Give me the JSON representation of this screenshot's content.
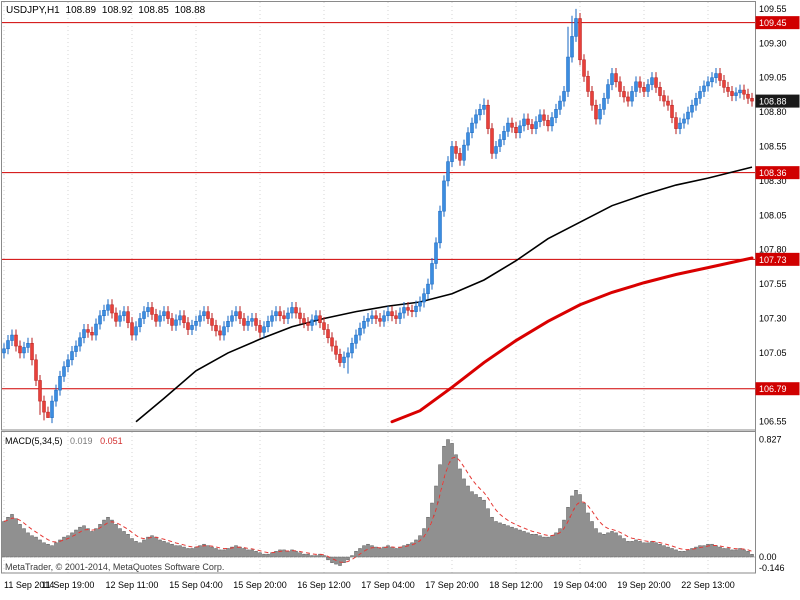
{
  "header": {
    "symbol_period": "USDJPY,H1",
    "open": "108.89",
    "high": "108.92",
    "low": "108.85",
    "close": "108.88"
  },
  "indicator": {
    "label": "MACD(5,34,5)",
    "value_main": "0.019",
    "value_signal": "0.051"
  },
  "watermark": "MetaTrader, © 2001-2014, MetaQuotes Software Corp.",
  "colors": {
    "candle_up": "#3b8de0",
    "candle_up_border": "#1565c0",
    "candle_down": "#e8403a",
    "candle_down_border": "#b71c1c",
    "ma_black": "#000000",
    "ma_red": "#d90000",
    "level_line": "#d00000",
    "level_badge": "#d00000",
    "current_badge": "#1a1a1a",
    "grid": "#d4d4d4",
    "pane_border": "#8a8a8a",
    "macd_bar_fill": "#909090",
    "macd_bar_border": "#5a5a5a",
    "macd_signal": "#e53935",
    "axis_text": "#000000"
  },
  "chart_data": [
    {
      "type": "candlestick",
      "title": "USDJPY,H1",
      "ylim": [
        106.49,
        109.6
      ],
      "grid": "vertical-dotted",
      "y_ticks": [
        "109.55",
        "109.30",
        "109.05",
        "108.80",
        "108.55",
        "108.30",
        "108.05",
        "107.80",
        "107.55",
        "107.30",
        "107.05",
        "106.55"
      ],
      "levels": [
        109.45,
        108.36,
        107.73,
        106.79
      ],
      "level_labels": [
        "109.45",
        "108.36",
        "107.73",
        "106.79"
      ],
      "current_price": 108.88,
      "current_price_label": "108.88",
      "x_labels": [
        "11 Sep 2014",
        "11 Sep 19:00",
        "12 Sep 11:00",
        "15 Sep 04:00",
        "15 Sep 20:00",
        "16 Sep 12:00",
        "17 Sep 04:00",
        "17 Sep 20:00",
        "18 Sep 12:00",
        "19 Sep 04:00",
        "19 Sep 20:00",
        "22 Sep 13:00"
      ],
      "x_label_indices": [
        0,
        16,
        32,
        48,
        64,
        80,
        96,
        112,
        128,
        144,
        160,
        176
      ],
      "first_open": 107.05,
      "wick": 0.04,
      "closes": [
        107.08,
        107.14,
        107.18,
        107.1,
        107.05,
        107.09,
        107.12,
        107.0,
        106.85,
        106.7,
        106.62,
        106.58,
        106.7,
        106.78,
        106.88,
        106.95,
        107.0,
        107.06,
        107.1,
        107.16,
        107.22,
        107.2,
        107.18,
        107.26,
        107.32,
        107.36,
        107.4,
        107.34,
        107.28,
        107.32,
        107.35,
        107.27,
        107.18,
        107.24,
        107.3,
        107.35,
        107.38,
        107.33,
        107.28,
        107.32,
        107.35,
        107.3,
        107.25,
        107.29,
        107.32,
        107.27,
        107.22,
        107.25,
        107.28,
        107.32,
        107.35,
        107.3,
        107.25,
        107.21,
        107.18,
        107.24,
        107.28,
        107.32,
        107.35,
        107.3,
        107.25,
        107.28,
        107.3,
        107.25,
        107.2,
        107.24,
        107.28,
        107.32,
        107.35,
        107.32,
        107.3,
        107.34,
        107.38,
        107.34,
        107.3,
        107.27,
        107.25,
        107.29,
        107.32,
        107.27,
        107.22,
        107.16,
        107.1,
        107.04,
        106.98,
        107.02,
        107.05,
        107.12,
        107.18,
        107.23,
        107.28,
        107.3,
        107.32,
        107.3,
        107.28,
        107.32,
        107.35,
        107.32,
        107.3,
        107.34,
        107.38,
        107.36,
        107.35,
        107.39,
        107.42,
        107.48,
        107.55,
        107.7,
        107.85,
        108.08,
        108.3,
        108.44,
        108.55,
        108.5,
        108.45,
        108.56,
        108.65,
        108.72,
        108.78,
        108.82,
        108.85,
        108.68,
        108.5,
        108.55,
        108.6,
        108.66,
        108.72,
        108.69,
        108.65,
        108.7,
        108.75,
        108.71,
        108.68,
        108.73,
        108.78,
        108.74,
        108.7,
        108.76,
        108.82,
        108.88,
        108.95,
        109.2,
        109.35,
        109.48,
        109.18,
        109.06,
        108.95,
        108.85,
        108.75,
        108.82,
        108.9,
        109.0,
        109.08,
        109.02,
        108.95,
        108.91,
        108.88,
        108.95,
        109.02,
        108.98,
        108.95,
        109.0,
        109.05,
        108.98,
        108.92,
        108.88,
        108.85,
        108.76,
        108.68,
        108.72,
        108.75,
        108.8,
        108.85,
        108.9,
        108.95,
        108.99,
        109.02,
        109.05,
        109.08,
        109.03,
        108.98,
        108.95,
        108.92,
        108.94,
        108.96,
        108.93,
        108.9,
        108.88
      ],
      "overrides": {
        "9": {
          "l": 106.6
        },
        "10": {
          "l": 106.56
        },
        "11": {
          "l": 106.58
        },
        "84": {
          "l": 106.95
        },
        "86": {
          "l": 106.9
        },
        "120": {
          "h": 108.9
        },
        "141": {
          "h": 109.42
        },
        "142": {
          "h": 109.5
        },
        "143": {
          "h": 109.55
        }
      },
      "ma_black": [
        [
          33,
          106.55
        ],
        [
          40,
          106.72
        ],
        [
          48,
          106.92
        ],
        [
          56,
          107.05
        ],
        [
          64,
          107.15
        ],
        [
          72,
          107.24
        ],
        [
          80,
          107.3
        ],
        [
          88,
          107.35
        ],
        [
          96,
          107.39
        ],
        [
          104,
          107.42
        ],
        [
          112,
          107.48
        ],
        [
          120,
          107.58
        ],
        [
          128,
          107.72
        ],
        [
          136,
          107.88
        ],
        [
          144,
          108.0
        ],
        [
          152,
          108.12
        ],
        [
          160,
          108.2
        ],
        [
          168,
          108.27
        ],
        [
          176,
          108.32
        ],
        [
          187,
          108.4
        ]
      ],
      "ma_red": [
        [
          97,
          106.55
        ],
        [
          104,
          106.63
        ],
        [
          112,
          106.8
        ],
        [
          120,
          106.98
        ],
        [
          128,
          107.14
        ],
        [
          136,
          107.28
        ],
        [
          144,
          107.4
        ],
        [
          152,
          107.49
        ],
        [
          160,
          107.56
        ],
        [
          168,
          107.62
        ],
        [
          176,
          107.67
        ],
        [
          187,
          107.74
        ]
      ]
    },
    {
      "type": "bar",
      "title": "MACD(5,34,5)",
      "ylim": [
        -0.146,
        0.827
      ],
      "y_ticks": [
        "0.827",
        "0.00",
        "-0.146"
      ],
      "signal_ema_period": 5,
      "values": [
        0.25,
        0.28,
        0.3,
        0.27,
        0.23,
        0.2,
        0.17,
        0.15,
        0.14,
        0.12,
        0.1,
        0.09,
        0.08,
        0.1,
        0.12,
        0.14,
        0.15,
        0.17,
        0.19,
        0.21,
        0.22,
        0.2,
        0.18,
        0.2,
        0.23,
        0.26,
        0.28,
        0.26,
        0.23,
        0.2,
        0.18,
        0.16,
        0.13,
        0.11,
        0.1,
        0.12,
        0.14,
        0.15,
        0.14,
        0.12,
        0.11,
        0.1,
        0.09,
        0.08,
        0.08,
        0.07,
        0.06,
        0.06,
        0.07,
        0.08,
        0.09,
        0.08,
        0.07,
        0.06,
        0.05,
        0.05,
        0.06,
        0.07,
        0.08,
        0.07,
        0.06,
        0.05,
        0.05,
        0.04,
        0.03,
        0.02,
        0.02,
        0.03,
        0.04,
        0.05,
        0.05,
        0.04,
        0.05,
        0.04,
        0.03,
        0.02,
        0.02,
        0.01,
        0.01,
        0.02,
        0.01,
        -0.02,
        -0.04,
        -0.05,
        -0.06,
        -0.04,
        -0.02,
        0.01,
        0.04,
        0.06,
        0.08,
        0.09,
        0.08,
        0.07,
        0.06,
        0.07,
        0.08,
        0.07,
        0.06,
        0.07,
        0.08,
        0.09,
        0.1,
        0.12,
        0.15,
        0.2,
        0.28,
        0.38,
        0.5,
        0.65,
        0.78,
        0.827,
        0.8,
        0.72,
        0.62,
        0.55,
        0.5,
        0.46,
        0.44,
        0.42,
        0.4,
        0.34,
        0.28,
        0.25,
        0.24,
        0.23,
        0.22,
        0.21,
        0.2,
        0.19,
        0.18,
        0.17,
        0.16,
        0.16,
        0.15,
        0.14,
        0.14,
        0.15,
        0.17,
        0.2,
        0.26,
        0.35,
        0.43,
        0.47,
        0.44,
        0.38,
        0.31,
        0.25,
        0.2,
        0.17,
        0.16,
        0.17,
        0.18,
        0.17,
        0.15,
        0.13,
        0.11,
        0.11,
        0.12,
        0.11,
        0.1,
        0.1,
        0.11,
        0.1,
        0.09,
        0.08,
        0.07,
        0.06,
        0.05,
        0.04,
        0.04,
        0.05,
        0.06,
        0.07,
        0.08,
        0.08,
        0.09,
        0.09,
        0.08,
        0.07,
        0.06,
        0.06,
        0.05,
        0.05,
        0.06,
        0.05,
        0.04,
        0.019
      ]
    }
  ]
}
